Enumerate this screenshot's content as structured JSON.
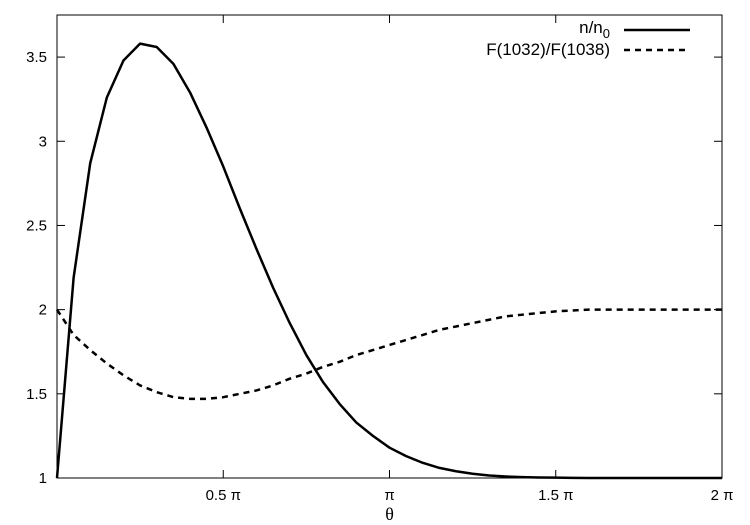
{
  "chart_data": {
    "type": "line",
    "title": "",
    "xlabel": "θ",
    "ylabel": "",
    "xlim": [
      0,
      6.283185307
    ],
    "ylim": [
      1,
      3.75
    ],
    "grid": false,
    "legend_position": "top-right",
    "x_ticks": [
      {
        "value": 1.570796327,
        "label": "0.5 π"
      },
      {
        "value": 3.141592654,
        "label": "π"
      },
      {
        "value": 4.71238898,
        "label": "1.5 π"
      },
      {
        "value": 6.283185307,
        "label": "2 π"
      }
    ],
    "y_ticks": [
      {
        "value": 1,
        "label": "1"
      },
      {
        "value": 1.5,
        "label": "1.5"
      },
      {
        "value": 2,
        "label": "2"
      },
      {
        "value": 2.5,
        "label": "2.5"
      },
      {
        "value": 3,
        "label": "3"
      },
      {
        "value": 3.5,
        "label": "3.5"
      }
    ],
    "series": [
      {
        "name": "n/n",
        "name_subscript": "0",
        "style": "solid",
        "color": "#000000",
        "x": [
          0,
          0.157,
          0.314,
          0.471,
          0.628,
          0.785,
          0.942,
          1.1,
          1.257,
          1.414,
          1.571,
          1.728,
          1.885,
          2.042,
          2.199,
          2.356,
          2.513,
          2.67,
          2.827,
          2.985,
          3.142,
          3.299,
          3.456,
          3.613,
          3.77,
          3.927,
          4.084,
          4.241,
          4.398,
          4.555,
          4.712,
          4.869,
          5.027,
          5.184,
          5.341,
          5.498,
          5.655,
          5.812,
          5.969,
          6.126,
          6.283
        ],
        "y": [
          1.0,
          2.19,
          2.87,
          3.26,
          3.48,
          3.58,
          3.56,
          3.46,
          3.29,
          3.08,
          2.85,
          2.6,
          2.36,
          2.13,
          1.92,
          1.73,
          1.57,
          1.44,
          1.33,
          1.25,
          1.18,
          1.13,
          1.09,
          1.06,
          1.04,
          1.025,
          1.015,
          1.009,
          1.005,
          1.003,
          1.002,
          1.001,
          1.0,
          1.0,
          1.0,
          1.0,
          1.0,
          1.0,
          1.0,
          1.0,
          1.0
        ]
      },
      {
        "name": "F(1032)/F(1038)",
        "style": "dashed",
        "color": "#000000",
        "x": [
          0,
          0.157,
          0.314,
          0.471,
          0.628,
          0.785,
          0.942,
          1.1,
          1.257,
          1.414,
          1.571,
          1.728,
          1.885,
          2.042,
          2.199,
          2.356,
          2.513,
          2.67,
          2.827,
          2.985,
          3.142,
          3.299,
          3.456,
          3.613,
          3.77,
          3.927,
          4.084,
          4.241,
          4.398,
          4.555,
          4.712,
          4.869,
          5.027,
          5.184,
          5.341,
          5.498,
          5.655,
          5.812,
          5.969,
          6.126,
          6.283
        ],
        "y": [
          2.0,
          1.85,
          1.76,
          1.68,
          1.61,
          1.55,
          1.51,
          1.48,
          1.47,
          1.47,
          1.48,
          1.5,
          1.52,
          1.55,
          1.59,
          1.62,
          1.66,
          1.69,
          1.73,
          1.76,
          1.79,
          1.82,
          1.85,
          1.88,
          1.9,
          1.92,
          1.94,
          1.96,
          1.97,
          1.98,
          1.99,
          1.995,
          2.0,
          2.0,
          2.0,
          2.0,
          2.0,
          2.0,
          2.0,
          2.0,
          2.0
        ]
      }
    ]
  }
}
